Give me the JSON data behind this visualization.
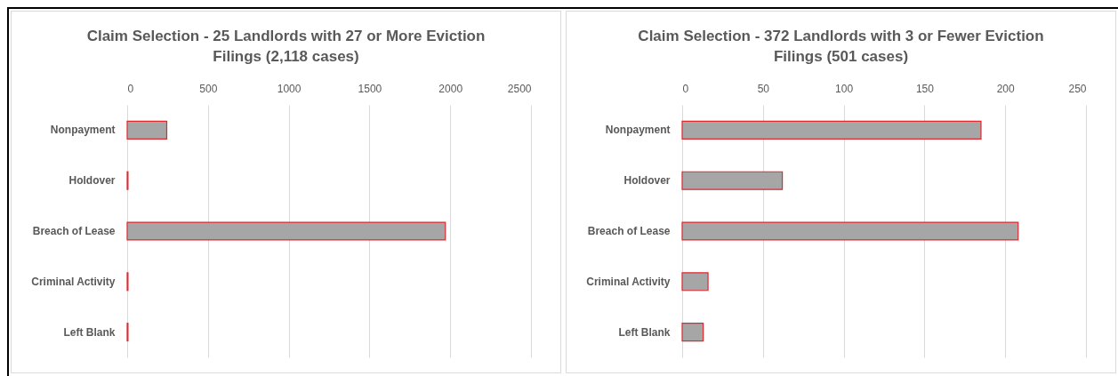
{
  "chart_data": [
    {
      "type": "bar",
      "orientation": "horizontal",
      "title": "Claim Selection - 25 Landlords with 27 or More Eviction Filings (2,118 cases)",
      "categories": [
        "Nonpayment",
        "Holdover",
        "Breach of Lease",
        "Criminal Activity",
        "Left Blank"
      ],
      "values": [
        245,
        5,
        1970,
        5,
        5
      ],
      "color": "#a6a6a6",
      "xlim": [
        0,
        2500
      ],
      "xticks": [
        0,
        500,
        1000,
        1500,
        2000,
        2500
      ],
      "grid": "x"
    },
    {
      "type": "bar",
      "orientation": "horizontal",
      "title": "Claim Selection - 372 Landlords with 3 or Fewer Eviction Filings (501 cases)",
      "categories": [
        "Nonpayment",
        "Holdover",
        "Breach of Lease",
        "Criminal Activity",
        "Left Blank"
      ],
      "values": [
        185,
        62,
        208,
        16,
        13
      ],
      "color": "#a6a6a6",
      "xlim": [
        0,
        250
      ],
      "xticks": [
        0,
        50,
        100,
        150,
        200,
        250
      ],
      "grid": "x"
    }
  ]
}
